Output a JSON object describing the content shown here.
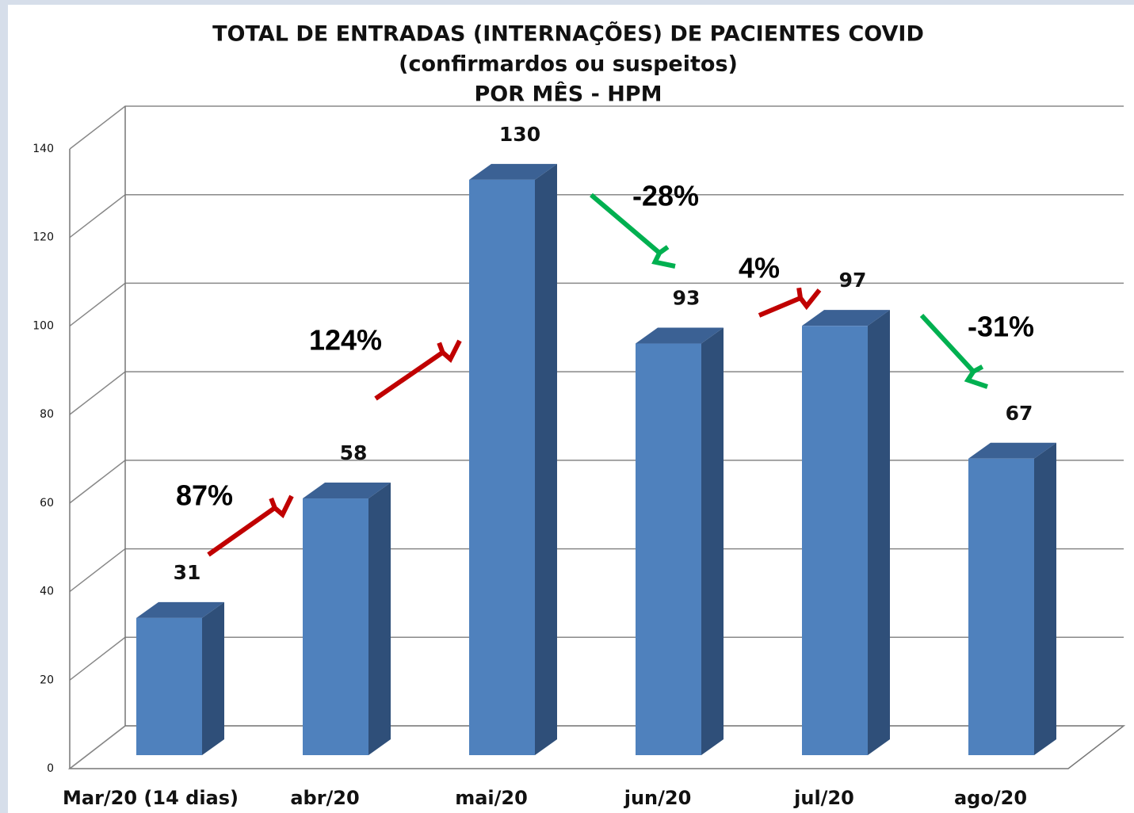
{
  "chart_data": {
    "type": "bar3d",
    "title": [
      "TOTAL DE ENTRADAS (INTERNAÇÕES) DE PACIENTES COVID",
      "(confirmardos ou suspeitos)",
      "POR MÊS - HPM"
    ],
    "categories": [
      "Mar/20 (14 dias)",
      "abr/20",
      "mai/20",
      "jun/20",
      "jul/20",
      "ago/20"
    ],
    "values": [
      31,
      58,
      130,
      93,
      97,
      67
    ],
    "color": "#4f81bd",
    "ylim": [
      0,
      140
    ],
    "yticks": [
      0,
      20,
      40,
      60,
      80,
      100,
      120,
      140
    ],
    "grid": true,
    "annotations": [
      {
        "text": "87%",
        "color": "#c00000"
      },
      {
        "text": "124%",
        "color": "#c00000"
      },
      {
        "text": "-28%",
        "color": "#00b050"
      },
      {
        "text": "4%",
        "color": "#c00000"
      },
      {
        "text": "-31%",
        "color": "#00b050"
      }
    ]
  }
}
